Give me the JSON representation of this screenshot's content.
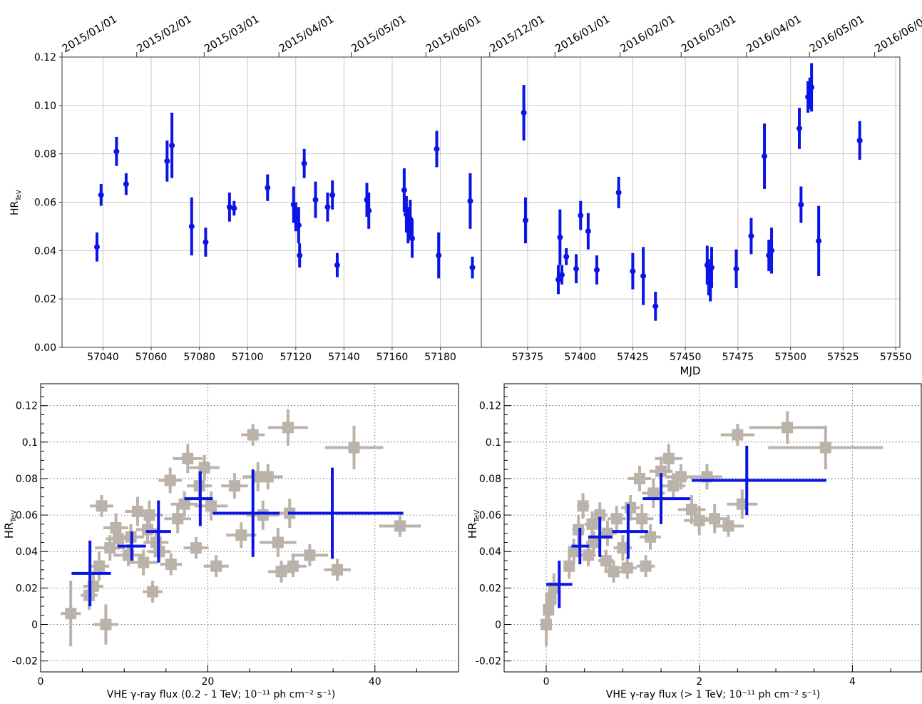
{
  "chart_data": [
    {
      "id": "top_left",
      "type": "scatter",
      "xlabel": "",
      "ylabel": "HR",
      "ylabel_sub": "TeV",
      "xlim": [
        57023,
        57197
      ],
      "ylim": [
        0,
        0.12
      ],
      "xticks": [
        57040,
        57060,
        57080,
        57100,
        57120,
        57140,
        57160,
        57180
      ],
      "yticks": [
        0,
        0.02,
        0.04,
        0.06,
        0.08,
        0.1,
        0.12
      ],
      "ytick_labels": [
        "0.00",
        "0.02",
        "0.04",
        "0.06",
        "0.08",
        "0.10",
        "0.12"
      ],
      "date_ticks": [
        {
          "label": "2015/01/01",
          "mjd": 57023
        },
        {
          "label": "2015/02/01",
          "mjd": 57054
        },
        {
          "label": "2015/03/01",
          "mjd": 57082
        },
        {
          "label": "2015/04/01",
          "mjd": 57113
        },
        {
          "label": "2015/05/01",
          "mjd": 57143
        },
        {
          "label": "2015/06/01",
          "mjd": 57174
        }
      ],
      "grid": true,
      "color": "#0a14e6",
      "points": [
        {
          "x": 57037.5,
          "y": 0.0415,
          "e": 0.006
        },
        {
          "x": 57039.2,
          "y": 0.063,
          "e": 0.0045
        },
        {
          "x": 57045.6,
          "y": 0.081,
          "e": 0.006
        },
        {
          "x": 57049.6,
          "y": 0.0675,
          "e": 0.0045
        },
        {
          "x": 57066.6,
          "y": 0.077,
          "e": 0.0085
        },
        {
          "x": 57068.6,
          "y": 0.0835,
          "e": 0.0135
        },
        {
          "x": 57076.8,
          "y": 0.05,
          "e": 0.012
        },
        {
          "x": 57082.6,
          "y": 0.0435,
          "e": 0.006
        },
        {
          "x": 57092.5,
          "y": 0.058,
          "e": 0.006
        },
        {
          "x": 57094.4,
          "y": 0.0575,
          "e": 0.003
        },
        {
          "x": 57108.3,
          "y": 0.066,
          "e": 0.0055
        },
        {
          "x": 57119.1,
          "y": 0.059,
          "e": 0.0075
        },
        {
          "x": 57120.0,
          "y": 0.054,
          "e": 0.006
        },
        {
          "x": 57121.2,
          "y": 0.0505,
          "e": 0.0075
        },
        {
          "x": 57121.6,
          "y": 0.038,
          "e": 0.005
        },
        {
          "x": 57123.5,
          "y": 0.076,
          "e": 0.006
        },
        {
          "x": 57128.2,
          "y": 0.061,
          "e": 0.0075
        },
        {
          "x": 57133.2,
          "y": 0.058,
          "e": 0.006
        },
        {
          "x": 57135.2,
          "y": 0.063,
          "e": 0.006
        },
        {
          "x": 57137.2,
          "y": 0.034,
          "e": 0.005
        },
        {
          "x": 57149.5,
          "y": 0.061,
          "e": 0.007
        },
        {
          "x": 57150.3,
          "y": 0.0565,
          "e": 0.0075
        },
        {
          "x": 57165.0,
          "y": 0.065,
          "e": 0.009
        },
        {
          "x": 57165.9,
          "y": 0.055,
          "e": 0.0075
        },
        {
          "x": 57166.6,
          "y": 0.0505,
          "e": 0.0075
        },
        {
          "x": 57167.5,
          "y": 0.053,
          "e": 0.008
        },
        {
          "x": 57168.3,
          "y": 0.045,
          "e": 0.008
        },
        {
          "x": 57178.5,
          "y": 0.082,
          "e": 0.0075
        },
        {
          "x": 57179.3,
          "y": 0.038,
          "e": 0.0095
        },
        {
          "x": 57192.4,
          "y": 0.0605,
          "e": 0.0115
        },
        {
          "x": 57193.3,
          "y": 0.033,
          "e": 0.0045
        }
      ]
    },
    {
      "id": "top_right",
      "type": "scatter",
      "xlabel": "MJD",
      "ylabel": "",
      "xlim": [
        57353,
        57552
      ],
      "ylim": [
        0,
        0.12
      ],
      "xticks": [
        57375,
        57400,
        57425,
        57450,
        57475,
        57500,
        57525,
        57550
      ],
      "date_ticks": [
        {
          "label": "2015/12/01",
          "mjd": 57357
        },
        {
          "label": "2016/01/01",
          "mjd": 57388
        },
        {
          "label": "2016/02/01",
          "mjd": 57419
        },
        {
          "label": "2016/03/01",
          "mjd": 57448
        },
        {
          "label": "2016/04/01",
          "mjd": 57479
        },
        {
          "label": "2016/05/01",
          "mjd": 57509
        },
        {
          "label": "2016/06/01",
          "mjd": 57540
        }
      ],
      "grid": true,
      "color": "#0a14e6",
      "points": [
        {
          "x": 57373.2,
          "y": 0.097,
          "e": 0.0115
        },
        {
          "x": 57374.0,
          "y": 0.0525,
          "e": 0.0095
        },
        {
          "x": 57389.6,
          "y": 0.028,
          "e": 0.006
        },
        {
          "x": 57390.4,
          "y": 0.0455,
          "e": 0.0115
        },
        {
          "x": 57391.3,
          "y": 0.03,
          "e": 0.004
        },
        {
          "x": 57393.4,
          "y": 0.0375,
          "e": 0.0035
        },
        {
          "x": 57398.1,
          "y": 0.0325,
          "e": 0.006
        },
        {
          "x": 57400.2,
          "y": 0.0545,
          "e": 0.006
        },
        {
          "x": 57403.8,
          "y": 0.048,
          "e": 0.0075
        },
        {
          "x": 57407.9,
          "y": 0.032,
          "e": 0.006
        },
        {
          "x": 57418.3,
          "y": 0.064,
          "e": 0.0065
        },
        {
          "x": 57425.0,
          "y": 0.0315,
          "e": 0.0075
        },
        {
          "x": 57430.0,
          "y": 0.0295,
          "e": 0.012
        },
        {
          "x": 57435.8,
          "y": 0.017,
          "e": 0.006
        },
        {
          "x": 57460.4,
          "y": 0.034,
          "e": 0.008
        },
        {
          "x": 57461.1,
          "y": 0.029,
          "e": 0.0075
        },
        {
          "x": 57461.9,
          "y": 0.0265,
          "e": 0.0075
        },
        {
          "x": 57462.5,
          "y": 0.033,
          "e": 0.0085
        },
        {
          "x": 57474.2,
          "y": 0.0325,
          "e": 0.008
        },
        {
          "x": 57481.3,
          "y": 0.046,
          "e": 0.0075
        },
        {
          "x": 57487.6,
          "y": 0.079,
          "e": 0.0135
        },
        {
          "x": 57489.7,
          "y": 0.038,
          "e": 0.0065
        },
        {
          "x": 57491.0,
          "y": 0.04,
          "e": 0.0095
        },
        {
          "x": 57504.2,
          "y": 0.0905,
          "e": 0.0085
        },
        {
          "x": 57505.0,
          "y": 0.059,
          "e": 0.0075
        },
        {
          "x": 57508.3,
          "y": 0.1035,
          "e": 0.0065
        },
        {
          "x": 57509.2,
          "y": 0.105,
          "e": 0.0065
        },
        {
          "x": 57510.0,
          "y": 0.1075,
          "e": 0.01
        },
        {
          "x": 57513.4,
          "y": 0.044,
          "e": 0.0145
        },
        {
          "x": 57532.9,
          "y": 0.0855,
          "e": 0.008
        }
      ]
    },
    {
      "id": "bottom_left",
      "type": "scatter",
      "xlabel": "VHE γ-ray flux (0.2 - 1 TeV; 10⁻¹¹ ph cm⁻² s⁻¹)",
      "ylabel": "HR",
      "ylabel_sub": "TeV",
      "xlim": [
        0,
        50
      ],
      "ylim": [
        -0.026,
        0.132
      ],
      "xticks": [
        0,
        20,
        40
      ],
      "yticks": [
        -0.02,
        0,
        0.02,
        0.04,
        0.06,
        0.08,
        0.1,
        0.12
      ],
      "ytick_labels": [
        "-0.02",
        "0",
        "0.02",
        "0.04",
        "0.06",
        "0.08",
        "0.1",
        "0.12"
      ],
      "grid": "dotted",
      "background_color": "#bbb3aa",
      "binned_color": "#0a14e6",
      "background_points": [
        {
          "x": 3.6,
          "y": 0.006,
          "ex": 1.2,
          "ey": 0.018
        },
        {
          "x": 5.8,
          "y": 0.016,
          "ex": 1.0,
          "ey": 0.008
        },
        {
          "x": 7.8,
          "y": 0.0,
          "ex": 1.5,
          "ey": 0.011
        },
        {
          "x": 6.3,
          "y": 0.021,
          "ex": 1.2,
          "ey": 0.008
        },
        {
          "x": 7.0,
          "y": 0.032,
          "ex": 1.2,
          "ey": 0.008
        },
        {
          "x": 7.3,
          "y": 0.065,
          "ex": 1.4,
          "ey": 0.006
        },
        {
          "x": 8.3,
          "y": 0.042,
          "ex": 1.8,
          "ey": 0.007
        },
        {
          "x": 9.3,
          "y": 0.047,
          "ex": 1.5,
          "ey": 0.006
        },
        {
          "x": 9.0,
          "y": 0.053,
          "ex": 1.5,
          "ey": 0.008
        },
        {
          "x": 10.5,
          "y": 0.038,
          "ex": 1.8,
          "ey": 0.006
        },
        {
          "x": 10.8,
          "y": 0.048,
          "ex": 1.6,
          "ey": 0.007
        },
        {
          "x": 11.6,
          "y": 0.062,
          "ex": 1.5,
          "ey": 0.008
        },
        {
          "x": 12.3,
          "y": 0.034,
          "ex": 1.7,
          "ey": 0.007
        },
        {
          "x": 12.8,
          "y": 0.052,
          "ex": 1.4,
          "ey": 0.007
        },
        {
          "x": 13.0,
          "y": 0.06,
          "ex": 1.6,
          "ey": 0.008
        },
        {
          "x": 13.4,
          "y": 0.018,
          "ex": 1.2,
          "ey": 0.006
        },
        {
          "x": 13.8,
          "y": 0.045,
          "ex": 1.5,
          "ey": 0.006
        },
        {
          "x": 14.2,
          "y": 0.04,
          "ex": 1.4,
          "ey": 0.006
        },
        {
          "x": 15.6,
          "y": 0.033,
          "ex": 1.3,
          "ey": 0.006
        },
        {
          "x": 15.5,
          "y": 0.079,
          "ex": 1.4,
          "ey": 0.007
        },
        {
          "x": 16.4,
          "y": 0.058,
          "ex": 1.6,
          "ey": 0.008
        },
        {
          "x": 17.2,
          "y": 0.066,
          "ex": 1.6,
          "ey": 0.007
        },
        {
          "x": 17.6,
          "y": 0.091,
          "ex": 1.8,
          "ey": 0.008
        },
        {
          "x": 18.6,
          "y": 0.042,
          "ex": 1.5,
          "ey": 0.006
        },
        {
          "x": 19.0,
          "y": 0.076,
          "ex": 1.5,
          "ey": 0.008
        },
        {
          "x": 19.6,
          "y": 0.086,
          "ex": 1.8,
          "ey": 0.007
        },
        {
          "x": 20.4,
          "y": 0.065,
          "ex": 2.0,
          "ey": 0.008
        },
        {
          "x": 21.0,
          "y": 0.032,
          "ex": 1.5,
          "ey": 0.006
        },
        {
          "x": 23.2,
          "y": 0.076,
          "ex": 1.6,
          "ey": 0.007
        },
        {
          "x": 24.0,
          "y": 0.049,
          "ex": 1.8,
          "ey": 0.007
        },
        {
          "x": 25.4,
          "y": 0.104,
          "ex": 1.4,
          "ey": 0.006
        },
        {
          "x": 26.0,
          "y": 0.081,
          "ex": 1.8,
          "ey": 0.008
        },
        {
          "x": 26.6,
          "y": 0.06,
          "ex": 2.0,
          "ey": 0.008
        },
        {
          "x": 27.2,
          "y": 0.081,
          "ex": 1.8,
          "ey": 0.007
        },
        {
          "x": 28.4,
          "y": 0.045,
          "ex": 2.2,
          "ey": 0.008
        },
        {
          "x": 28.8,
          "y": 0.029,
          "ex": 1.6,
          "ey": 0.006
        },
        {
          "x": 29.8,
          "y": 0.061,
          "ex": 2.0,
          "ey": 0.008
        },
        {
          "x": 30.2,
          "y": 0.032,
          "ex": 1.6,
          "ey": 0.006
        },
        {
          "x": 29.6,
          "y": 0.108,
          "ex": 2.4,
          "ey": 0.01
        },
        {
          "x": 32.2,
          "y": 0.038,
          "ex": 2.2,
          "ey": 0.006
        },
        {
          "x": 35.5,
          "y": 0.03,
          "ex": 1.6,
          "ey": 0.006
        },
        {
          "x": 37.5,
          "y": 0.097,
          "ex": 3.5,
          "ey": 0.012
        },
        {
          "x": 43.0,
          "y": 0.054,
          "ex": 2.5,
          "ey": 0.006
        }
      ],
      "binned_points": [
        {
          "x": 5.9,
          "xlo": 3.7,
          "xhi": 8.4,
          "y": 0.028,
          "ey": 0.018
        },
        {
          "x": 10.9,
          "xlo": 9.2,
          "xhi": 12.6,
          "y": 0.043,
          "ey": 0.008
        },
        {
          "x": 14.1,
          "xlo": 12.6,
          "xhi": 15.6,
          "y": 0.051,
          "ey": 0.017
        },
        {
          "x": 19.1,
          "xlo": 17.2,
          "xhi": 20.6,
          "y": 0.069,
          "ey": 0.015
        },
        {
          "x": 25.4,
          "xlo": 20.6,
          "xhi": 28.6,
          "y": 0.061,
          "ey": 0.024
        },
        {
          "x": 34.9,
          "xlo": 29.6,
          "xhi": 43.4,
          "y": 0.061,
          "ey": 0.025
        }
      ]
    },
    {
      "id": "bottom_right",
      "type": "scatter",
      "xlabel": "VHE γ-ray flux (> 1 TeV; 10⁻¹¹ ph cm⁻² s⁻¹)",
      "ylabel": "HR",
      "ylabel_sub": "TeV",
      "xlim": [
        -0.55,
        4.9
      ],
      "ylim": [
        -0.026,
        0.132
      ],
      "xticks": [
        0,
        2,
        4
      ],
      "yticks": [
        -0.02,
        0,
        0.02,
        0.04,
        0.06,
        0.08,
        0.1,
        0.12
      ],
      "ytick_labels": [
        "-0.02",
        "0",
        "0.02",
        "0.04",
        "0.06",
        "0.08",
        "0.1",
        "0.12"
      ],
      "grid": "dotted",
      "background_color": "#bbb3aa",
      "binned_color": "#0a14e6",
      "background_points": [
        {
          "x": 0.0,
          "y": 0.0,
          "ex": 0.05,
          "ey": 0.012
        },
        {
          "x": 0.03,
          "y": 0.008,
          "ex": 0.05,
          "ey": 0.01
        },
        {
          "x": 0.06,
          "y": 0.014,
          "ex": 0.05,
          "ey": 0.008
        },
        {
          "x": 0.1,
          "y": 0.02,
          "ex": 0.06,
          "ey": 0.008
        },
        {
          "x": 0.3,
          "y": 0.032,
          "ex": 0.07,
          "ey": 0.007
        },
        {
          "x": 0.36,
          "y": 0.04,
          "ex": 0.08,
          "ey": 0.007
        },
        {
          "x": 0.42,
          "y": 0.052,
          "ex": 0.08,
          "ey": 0.008
        },
        {
          "x": 0.48,
          "y": 0.065,
          "ex": 0.08,
          "ey": 0.007
        },
        {
          "x": 0.55,
          "y": 0.038,
          "ex": 0.1,
          "ey": 0.006
        },
        {
          "x": 0.6,
          "y": 0.055,
          "ex": 0.1,
          "ey": 0.007
        },
        {
          "x": 0.62,
          "y": 0.045,
          "ex": 0.1,
          "ey": 0.006
        },
        {
          "x": 0.7,
          "y": 0.06,
          "ex": 0.1,
          "ey": 0.007
        },
        {
          "x": 0.78,
          "y": 0.035,
          "ex": 0.1,
          "ey": 0.006
        },
        {
          "x": 0.8,
          "y": 0.05,
          "ex": 0.12,
          "ey": 0.007
        },
        {
          "x": 0.88,
          "y": 0.029,
          "ex": 0.12,
          "ey": 0.006
        },
        {
          "x": 0.92,
          "y": 0.058,
          "ex": 0.12,
          "ey": 0.007
        },
        {
          "x": 1.0,
          "y": 0.042,
          "ex": 0.12,
          "ey": 0.007
        },
        {
          "x": 1.06,
          "y": 0.031,
          "ex": 0.12,
          "ey": 0.006
        },
        {
          "x": 1.1,
          "y": 0.064,
          "ex": 0.12,
          "ey": 0.007
        },
        {
          "x": 1.22,
          "y": 0.08,
          "ex": 0.15,
          "ey": 0.007
        },
        {
          "x": 1.25,
          "y": 0.058,
          "ex": 0.15,
          "ey": 0.008
        },
        {
          "x": 1.3,
          "y": 0.032,
          "ex": 0.12,
          "ey": 0.006
        },
        {
          "x": 1.36,
          "y": 0.048,
          "ex": 0.14,
          "ey": 0.007
        },
        {
          "x": 1.4,
          "y": 0.072,
          "ex": 0.15,
          "ey": 0.008
        },
        {
          "x": 1.5,
          "y": 0.084,
          "ex": 0.15,
          "ey": 0.008
        },
        {
          "x": 1.6,
          "y": 0.091,
          "ex": 0.18,
          "ey": 0.008
        },
        {
          "x": 1.66,
          "y": 0.076,
          "ex": 0.16,
          "ey": 0.007
        },
        {
          "x": 1.76,
          "y": 0.081,
          "ex": 0.2,
          "ey": 0.007
        },
        {
          "x": 1.9,
          "y": 0.063,
          "ex": 0.18,
          "ey": 0.008
        },
        {
          "x": 2.0,
          "y": 0.057,
          "ex": 0.2,
          "ey": 0.008
        },
        {
          "x": 2.1,
          "y": 0.081,
          "ex": 0.2,
          "ey": 0.007
        },
        {
          "x": 2.2,
          "y": 0.058,
          "ex": 0.2,
          "ey": 0.008
        },
        {
          "x": 2.38,
          "y": 0.054,
          "ex": 0.2,
          "ey": 0.006
        },
        {
          "x": 2.5,
          "y": 0.104,
          "ex": 0.22,
          "ey": 0.006
        },
        {
          "x": 2.56,
          "y": 0.066,
          "ex": 0.2,
          "ey": 0.008
        },
        {
          "x": 3.15,
          "y": 0.108,
          "ex": 0.5,
          "ey": 0.009
        },
        {
          "x": 3.65,
          "y": 0.097,
          "ex": 0.75,
          "ey": 0.012
        }
      ],
      "binned_points": [
        {
          "x": 0.17,
          "xlo": 0.0,
          "xhi": 0.34,
          "y": 0.022,
          "ey": 0.013
        },
        {
          "x": 0.44,
          "xlo": 0.33,
          "xhi": 0.56,
          "y": 0.043,
          "ey": 0.01
        },
        {
          "x": 0.7,
          "xlo": 0.55,
          "xhi": 0.86,
          "y": 0.048,
          "ey": 0.011
        },
        {
          "x": 1.07,
          "xlo": 0.86,
          "xhi": 1.33,
          "y": 0.051,
          "ey": 0.015
        },
        {
          "x": 1.5,
          "xlo": 1.26,
          "xhi": 1.88,
          "y": 0.069,
          "ey": 0.014
        },
        {
          "x": 2.62,
          "xlo": 1.9,
          "xhi": 3.66,
          "y": 0.079,
          "ey": 0.019
        }
      ]
    }
  ]
}
